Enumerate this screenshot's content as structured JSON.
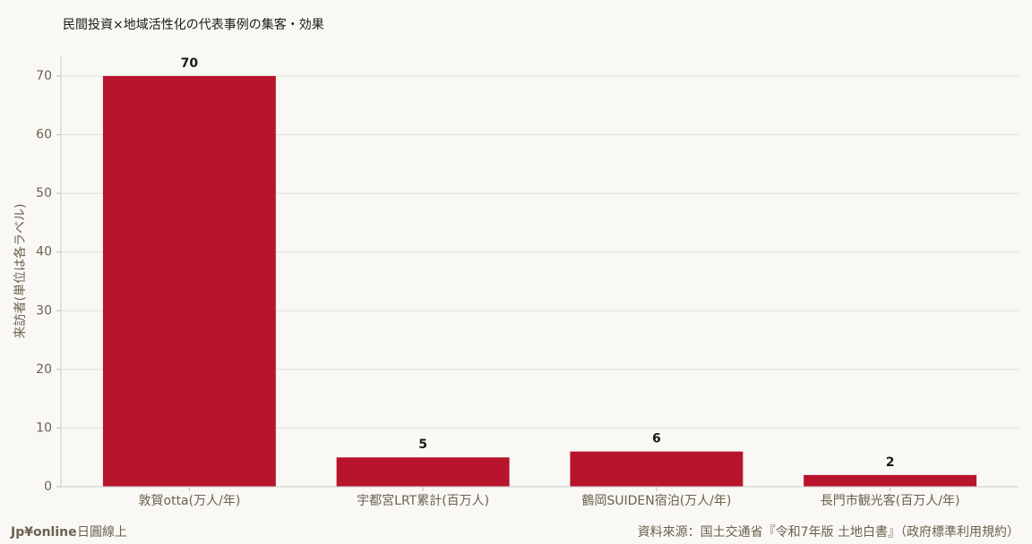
{
  "chart_data": {
    "type": "bar",
    "title": "民間投資×地域活性化の代表事例の集客・効果",
    "y_label": "来訪者(単位は各ラベル)",
    "categories": [
      "敦賀otta(万人/年)",
      "宇都宮LRT累計(百万人)",
      "鶴岡SUIDEN宿泊(万人/年)",
      "長門市観光客(百万人/年)"
    ],
    "values": [
      70,
      5,
      6,
      2
    ],
    "color": "#b8142c",
    "ylim": [
      0,
      73.5
    ],
    "yticks": [
      0,
      10,
      20,
      30,
      40,
      50,
      60,
      70
    ],
    "grid": true
  },
  "footer": {
    "brand": "Jp¥online",
    "brand_sub": "日圓線上",
    "source": "資料來源：国土交通省『令和7年版 土地白書』（政府標準利用規約）"
  }
}
